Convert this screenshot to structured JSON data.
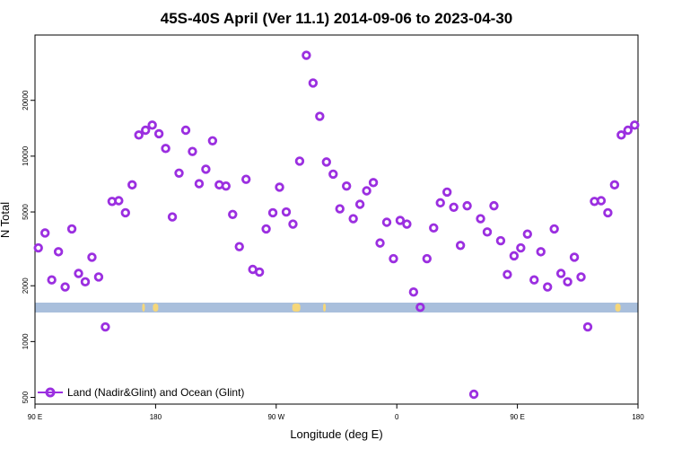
{
  "chart_data": {
    "type": "scatter",
    "title": "45S-40S April (Ver 11.1)   2014-09-06 to 2023-04-30",
    "xlabel": "Longitude (deg E)",
    "ylabel": "N Total",
    "x_ticks": [
      {
        "value": -90,
        "label": "90 E"
      },
      {
        "value": 0,
        "label": "180"
      },
      {
        "value": 90,
        "label": "90 W"
      },
      {
        "value": 180,
        "label": "0"
      },
      {
        "value": 270,
        "label": "90 E"
      },
      {
        "value": 360,
        "label": "180"
      }
    ],
    "y_ticks": [
      500,
      1000,
      2000,
      5000,
      10000,
      20000
    ],
    "y_scale": "log",
    "xlim": [
      -90,
      360
    ],
    "ylim": [
      460,
      45000
    ],
    "grid": false,
    "legend": {
      "position": "bottom-left",
      "entries": [
        "Land (Nadir&Glint) and Ocean (Glint)"
      ]
    },
    "colors": {
      "points": "#9b2fe0",
      "band": "#a9bfdc",
      "land": "#f6d77a"
    },
    "series": [
      {
        "name": "Land (Nadir&Glint) and Ocean (Glint)",
        "x": [
          -87.5,
          -82.5,
          -77.5,
          -72.5,
          -67.5,
          -62.5,
          -57.5,
          -52.5,
          -47.5,
          -42.5,
          -37.5,
          -32.5,
          -27.5,
          -22.5,
          -17.5,
          -12.5,
          -7.5,
          -2.5,
          2.5,
          7.5,
          12.5,
          17.5,
          22.5,
          27.5,
          32.5,
          37.5,
          42.5,
          47.5,
          52.5,
          57.5,
          62.5,
          67.5,
          72.5,
          77.5,
          82.5,
          87.5,
          92.5,
          97.5,
          102.5,
          107.5,
          112.5,
          117.5,
          122.5,
          127.5,
          132.5,
          137.5,
          142.5,
          147.5,
          152.5,
          157.5,
          162.5,
          167.5,
          172.5,
          177.5,
          182.5,
          187.5,
          192.5,
          197.5,
          202.5,
          207.5,
          212.5,
          217.5,
          222.5,
          227.5,
          232.5,
          237.5,
          242.5,
          247.5,
          252.5,
          257.5,
          262.5,
          267.5,
          272.5,
          277.5,
          282.5,
          287.5,
          292.5,
          297.5,
          302.5,
          307.5,
          312.5,
          317.5,
          322.5,
          327.5,
          332.5,
          337.5,
          342.5,
          347.5,
          352.5,
          357.5
        ],
        "y": [
          3200,
          3850,
          2150,
          3050,
          1970,
          4050,
          2330,
          2100,
          2850,
          2230,
          1200,
          5700,
          5750,
          4950,
          7000,
          13000,
          13800,
          14700,
          13200,
          11000,
          4700,
          8100,
          13800,
          10600,
          7100,
          8500,
          12100,
          7000,
          6900,
          4850,
          3250,
          7500,
          2450,
          2370,
          4050,
          4950,
          6800,
          5000,
          4300,
          9400,
          35000,
          24800,
          16400,
          9300,
          8000,
          5200,
          6900,
          4600,
          5500,
          6500,
          7200,
          3400,
          4400,
          2800,
          4500,
          4300,
          1850,
          1530,
          2800,
          4100,
          5600,
          6400,
          5300,
          3300,
          5400,
          520,
          4600,
          3900,
          5400,
          3500,
          2300,
          2900,
          3200,
          3800,
          2150,
          3050,
          1970,
          4050,
          2330,
          2100,
          2850,
          2230,
          1200,
          5700,
          5750,
          4950,
          7000,
          13000,
          13800,
          14700
        ]
      }
    ]
  }
}
